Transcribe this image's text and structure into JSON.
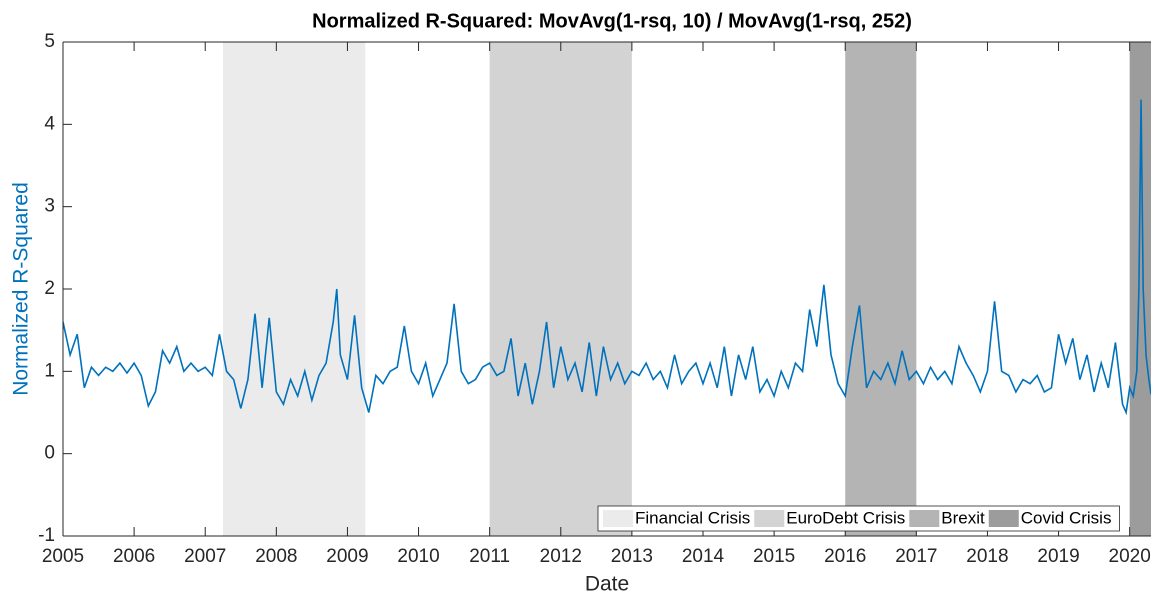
{
  "chart_data": {
    "type": "line",
    "title": "Normalized R-Squared: MovAvg(1-rsq, 10) / MovAvg(1-rsq, 252)",
    "xlabel": "Date",
    "ylabel": "Normalized R-Squared",
    "xlim": [
      2005,
      2020.3
    ],
    "ylim": [
      -1,
      5
    ],
    "xticks": [
      2005,
      2006,
      2007,
      2008,
      2009,
      2010,
      2011,
      2012,
      2013,
      2014,
      2015,
      2016,
      2017,
      2018,
      2019,
      2020
    ],
    "yticks": [
      -1,
      0,
      1,
      2,
      3,
      4,
      5
    ],
    "legend": "lower right",
    "regions": [
      {
        "name": "Financial Crisis",
        "start": 2007.25,
        "end": 2009.25,
        "color": "#ebebeb"
      },
      {
        "name": "EuroDebt Crisis",
        "start": 2011,
        "end": 2013,
        "color": "#d3d3d3"
      },
      {
        "name": "Brexit",
        "start": 2016,
        "end": 2017,
        "color": "#b4b4b4"
      },
      {
        "name": "Covid Crisis",
        "start": 2020,
        "end": 2020.3,
        "color": "#9c9c9c"
      }
    ],
    "x": [
      2005.0,
      2005.1,
      2005.2,
      2005.3,
      2005.4,
      2005.5,
      2005.6,
      2005.7,
      2005.8,
      2005.9,
      2006.0,
      2006.1,
      2006.2,
      2006.3,
      2006.4,
      2006.5,
      2006.6,
      2006.7,
      2006.8,
      2006.9,
      2007.0,
      2007.1,
      2007.2,
      2007.3,
      2007.4,
      2007.5,
      2007.6,
      2007.7,
      2007.8,
      2007.9,
      2008.0,
      2008.1,
      2008.2,
      2008.3,
      2008.4,
      2008.5,
      2008.6,
      2008.7,
      2008.8,
      2008.85,
      2008.9,
      2009.0,
      2009.1,
      2009.2,
      2009.3,
      2009.4,
      2009.5,
      2009.6,
      2009.7,
      2009.8,
      2009.9,
      2010.0,
      2010.1,
      2010.2,
      2010.3,
      2010.4,
      2010.5,
      2010.6,
      2010.7,
      2010.8,
      2010.9,
      2011.0,
      2011.1,
      2011.2,
      2011.3,
      2011.4,
      2011.5,
      2011.6,
      2011.7,
      2011.8,
      2011.9,
      2012.0,
      2012.1,
      2012.2,
      2012.3,
      2012.4,
      2012.5,
      2012.6,
      2012.7,
      2012.8,
      2012.9,
      2013.0,
      2013.1,
      2013.2,
      2013.3,
      2013.4,
      2013.5,
      2013.6,
      2013.7,
      2013.8,
      2013.9,
      2014.0,
      2014.1,
      2014.2,
      2014.3,
      2014.4,
      2014.5,
      2014.6,
      2014.7,
      2014.8,
      2014.9,
      2015.0,
      2015.1,
      2015.2,
      2015.3,
      2015.4,
      2015.5,
      2015.6,
      2015.7,
      2015.8,
      2015.9,
      2016.0,
      2016.1,
      2016.2,
      2016.3,
      2016.4,
      2016.5,
      2016.6,
      2016.7,
      2016.8,
      2016.9,
      2017.0,
      2017.1,
      2017.2,
      2017.3,
      2017.4,
      2017.5,
      2017.6,
      2017.7,
      2017.8,
      2017.9,
      2018.0,
      2018.1,
      2018.2,
      2018.3,
      2018.4,
      2018.5,
      2018.6,
      2018.7,
      2018.8,
      2018.9,
      2019.0,
      2019.1,
      2019.2,
      2019.3,
      2019.4,
      2019.5,
      2019.6,
      2019.7,
      2019.8,
      2019.9,
      2019.95,
      2020.0,
      2020.05,
      2020.1,
      2020.13,
      2020.16,
      2020.19,
      2020.23,
      2020.27,
      2020.3
    ],
    "series": [
      {
        "name": "Normalized R-Squared",
        "color": "#0072bd",
        "values": [
          1.6,
          1.2,
          1.45,
          0.8,
          1.05,
          0.95,
          1.05,
          1.0,
          1.1,
          0.98,
          1.1,
          0.95,
          0.58,
          0.75,
          1.25,
          1.1,
          1.3,
          1.0,
          1.1,
          1.0,
          1.05,
          0.95,
          1.45,
          1.0,
          0.9,
          0.55,
          0.9,
          1.7,
          0.8,
          1.65,
          0.75,
          0.6,
          0.9,
          0.7,
          1.0,
          0.65,
          0.95,
          1.1,
          1.6,
          2.0,
          1.2,
          0.9,
          1.68,
          0.8,
          0.5,
          0.95,
          0.85,
          1.0,
          1.05,
          1.55,
          1.0,
          0.85,
          1.1,
          0.7,
          0.9,
          1.1,
          1.82,
          1.0,
          0.85,
          0.9,
          1.05,
          1.1,
          0.95,
          1.0,
          1.4,
          0.7,
          1.1,
          0.6,
          1.0,
          1.6,
          0.8,
          1.3,
          0.9,
          1.1,
          0.75,
          1.35,
          0.7,
          1.3,
          0.9,
          1.1,
          0.85,
          1.0,
          0.95,
          1.1,
          0.9,
          1.0,
          0.8,
          1.2,
          0.85,
          1.0,
          1.1,
          0.85,
          1.1,
          0.8,
          1.3,
          0.7,
          1.2,
          0.9,
          1.3,
          0.75,
          0.9,
          0.7,
          1.0,
          0.8,
          1.1,
          1.0,
          1.75,
          1.3,
          2.05,
          1.2,
          0.85,
          0.7,
          1.3,
          1.8,
          0.8,
          1.0,
          0.9,
          1.1,
          0.85,
          1.25,
          0.9,
          1.0,
          0.85,
          1.05,
          0.9,
          1.0,
          0.85,
          1.3,
          1.1,
          0.95,
          0.75,
          1.0,
          1.85,
          1.0,
          0.95,
          0.75,
          0.9,
          0.85,
          0.95,
          0.75,
          0.8,
          1.45,
          1.1,
          1.4,
          0.9,
          1.2,
          0.75,
          1.1,
          0.8,
          1.35,
          0.6,
          0.5,
          0.8,
          0.7,
          1.0,
          2.0,
          4.3,
          2.0,
          1.2,
          0.9,
          0.72
        ]
      }
    ]
  }
}
